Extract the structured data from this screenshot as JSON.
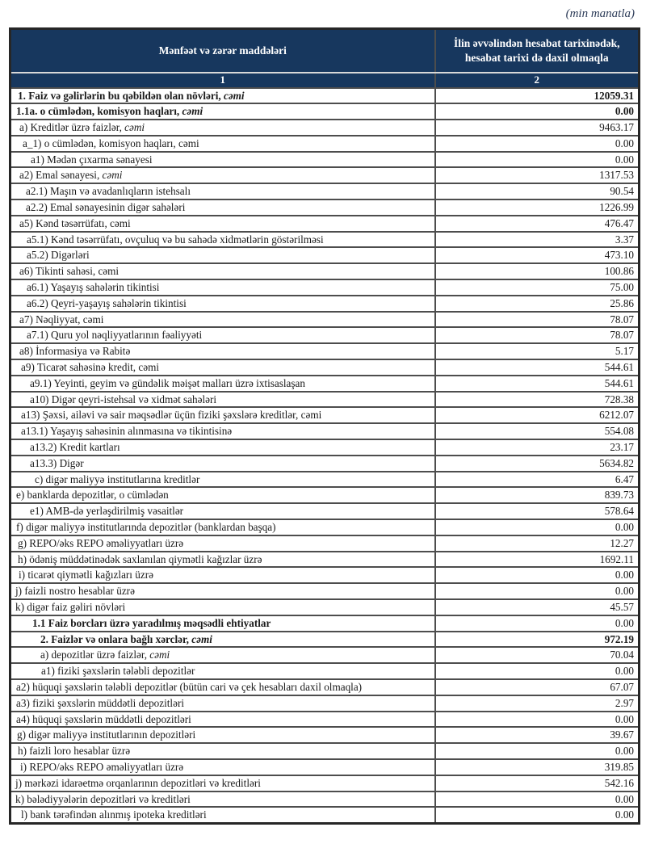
{
  "unit_note": "(min manatla)",
  "colors": {
    "header_bg": "#17375E",
    "header_text": "#FFFFFF",
    "grid_border": "#4D4D4D",
    "outer_border": "#262626"
  },
  "table": {
    "header": {
      "items_label": "Mənfəət və zərər maddələri",
      "period_label": "İlin əvvəlindən hesabat tarixinədək, hesabat tarixi də daxil olmaqla",
      "col1_num": "1",
      "col2_num": "2"
    },
    "rows": [
      {
        "label": "1. Faiz və gəlirlərin bu qəbildən olan növləri, ",
        "label_italic": "cəmi",
        "value": "12059.31",
        "indent": 4,
        "label_bold": true,
        "value_bold": true
      },
      {
        "label": "1.1a. o cümlədən, komisyon haqları, ",
        "label_italic": "cəmi",
        "value": "0.00",
        "indent": 2,
        "label_bold": true,
        "value_bold": true
      },
      {
        "label": "a) Kreditlər üzrə faizlər, ",
        "label_italic": "cəmi",
        "value": "9463.17",
        "indent": 6
      },
      {
        "label": "a_1) o cümlədən, komisyon haqları, cəmi",
        "value": "0.00",
        "indent": 10
      },
      {
        "label": "a1) Mədən çıxarma sənayesi",
        "value": "0.00",
        "indent": 20
      },
      {
        "label": "a2) Emal sənayesi, ",
        "label_italic": "cəmi",
        "value": "1317.53",
        "indent": 6
      },
      {
        "label": "a2.1) Maşın və avadanlıqların istehsalı",
        "value": "90.54",
        "indent": 14
      },
      {
        "label": "a2.2) Emal sənayesinin digər sahələri",
        "value": "1226.99",
        "indent": 14
      },
      {
        "label": "a5) Kənd təsərrüfatı, cəmi",
        "value": "476.47",
        "indent": 6
      },
      {
        "label": "a5.1) Kənd təsərrüfatı, ovçuluq və bu sahədə xidmətlərin göstərilməsi",
        "value": "3.37",
        "indent": 15
      },
      {
        "label": "a5.2) Digərləri",
        "value": "473.10",
        "indent": 15
      },
      {
        "label": "a6) Tikinti sahəsi, cəmi",
        "value": "100.86",
        "indent": 6
      },
      {
        "label": "a6.1) Yaşayış sahələrin tikintisi",
        "value": "75.00",
        "indent": 15
      },
      {
        "label": "a6.2) Qeyri-yaşayış sahələrin tikintisi",
        "value": "25.86",
        "indent": 15
      },
      {
        "label": "a7) Nəqliyyat, cəmi",
        "value": "78.07",
        "indent": 6
      },
      {
        "label": "a7.1) Quru yol nəqliyyatlarının fəaliyyəti",
        "value": "78.07",
        "indent": 15
      },
      {
        "label": "a8)  İnformasiya və Rabitə",
        "value": "5.17",
        "indent": 6
      },
      {
        "label": "a9) Ticarət sahəsinə kredit, cəmi",
        "value": "544.61",
        "indent": 8
      },
      {
        "label": "a9.1) Yeyinti, geyim və gündəlik məişət malları üzrə ixtisaslaşan",
        "value": "544.61",
        "indent": 19
      },
      {
        "label": "a10) Digər qeyri-istehsal və xidmət sahələri",
        "value": "728.38",
        "indent": 19
      },
      {
        "label": "a13) Şəxsi, ailəvi və sair məqsədlər üçün fiziki şəxslərə kreditlər, cəmi",
        "value": "6212.07",
        "indent": 8
      },
      {
        "label": "a13.1) Yaşayış sahəsinin alınmasına və tikintisinə",
        "value": "554.08",
        "indent": 8
      },
      {
        "label": "a13.2) Kredit kartları",
        "value": "23.17",
        "indent": 19
      },
      {
        "label": "a13.3) Digər",
        "value": "5634.82",
        "indent": 19
      },
      {
        "label": "c) digər maliyyə institutlarına kreditlər",
        "value": "6.47",
        "indent": 25
      },
      {
        "label": "e) banklarda depozitlər, o cümlədən",
        "value": "839.73",
        "indent": 2
      },
      {
        "label": "e1)  AMB-də yerləşdirilmiş vəsaitlər",
        "value": "578.64",
        "indent": 19
      },
      {
        "label": "f) digər maliyyə institutlarında depozitlər (banklardan başqa)",
        "value": "0.00",
        "indent": 2
      },
      {
        "label": "g) REPO/əks REPO əməliyyatları üzrə",
        "value": "12.27",
        "indent": 4
      },
      {
        "label": "h) ödəniş müddətinədək saxlanılan qiymətli kağızlar üzrə",
        "value": "1692.11",
        "indent": 4
      },
      {
        "label": "i) ticarət qiymətli kağızları üzrə",
        "value": "0.00",
        "indent": 5
      },
      {
        "label": "j) faizli nostro hesablar üzrə",
        "value": "0.00",
        "indent": 1
      },
      {
        "label": "k) digər faiz gəliri növləri",
        "value": "45.57",
        "indent": 1
      },
      {
        "label": "1.1 Faiz borcları üzrə yaradılmış məqsədli ehtiyatlar",
        "value": "0.00",
        "indent": 22,
        "label_bold": true
      },
      {
        "label": "2. Faizlər və onlara bağlı xərclər, ",
        "label_italic": "cəmi",
        "value": "972.19",
        "indent": 32,
        "label_bold": true,
        "value_bold": true
      },
      {
        "label": "a) depozitlər üzrə faizlər, ",
        "label_italic": "cəmi",
        "value": "70.04",
        "indent": 32
      },
      {
        "label": "a1) fiziki şəxslərin tələbli depozitlər",
        "value": "0.00",
        "indent": 33
      },
      {
        "label": "a2) hüquqi şəxslərin tələbli depozitlər (bütün cari və çek hesabları daxil olmaqla)",
        "value": "67.07",
        "indent": 2
      },
      {
        "label": "a3) fiziki şəxslərin müddətli depozitləri",
        "value": "2.97",
        "indent": 2
      },
      {
        "label": "a4) hüquqi şəxslərin müddətli depozitləri",
        "value": "0.00",
        "indent": 2
      },
      {
        "label": "g) digər maliyyə institutlarının depozitləri",
        "value": "39.67",
        "indent": 3
      },
      {
        "label": "h) faizli loro hesablar üzrə",
        "value": "0.00",
        "indent": 4
      },
      {
        "label": "i) REPO/əks REPO əməliyyatları üzrə",
        "value": "319.85",
        "indent": 7
      },
      {
        "label": "j) mərkəzi idarəetmə orqanlarının depozitləri və kreditləri",
        "value": "542.16",
        "indent": 1
      },
      {
        "label": "k) bələdiyyələrin depozitləri və kreditləri",
        "value": "0.00",
        "indent": 1
      },
      {
        "label": "l) bank tərəfindən alınmış ipoteka kreditləri",
        "value": "0.00",
        "indent": 8
      }
    ]
  }
}
